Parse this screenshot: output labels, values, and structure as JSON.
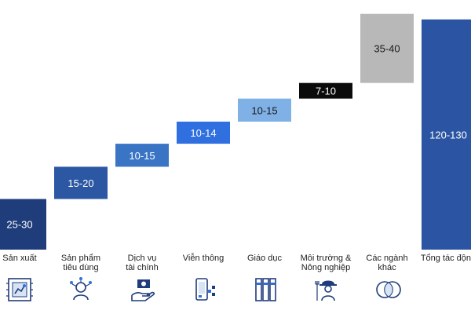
{
  "caption": "",
  "colors": {
    "navy": "#1f3c7b",
    "mid_blue": "#2b57a3",
    "blue": "#3a74c4",
    "bright_blue": "#2f6fe0",
    "light_blue": "#7fb0e6",
    "black": "#0b0b0b",
    "grey": "#b8b8b8",
    "total_blue": "#2b55a2"
  },
  "chart_data": {
    "type": "waterfall",
    "title": "",
    "xlabel": "",
    "ylabel": "",
    "categories": [
      "Sản xuất",
      "Sản phẩm tiêu dùng",
      "Dịch vụ tài chính",
      "Viễn thông",
      "Giáo dục",
      "Môi trường & Nông nghiệp",
      "Các ngành khác",
      "Tổng tác động"
    ],
    "category_lines": [
      [
        "Sản xuất"
      ],
      [
        "Sản phẩm",
        "tiêu dùng"
      ],
      [
        "Dịch vụ",
        "tài chính"
      ],
      [
        "Viễn thông"
      ],
      [
        "Giáo dục"
      ],
      [
        "Môi trường &",
        "Nông nghiệp"
      ],
      [
        "Các ngành",
        "khác"
      ],
      [
        "Tổng tác động"
      ]
    ],
    "labels": [
      "25-30",
      "15-20",
      "10-15",
      "10-14",
      "10-15",
      "7-10",
      "35-40",
      "120-130"
    ],
    "values": [
      27.5,
      17.5,
      12.5,
      12,
      12.5,
      8.5,
      37.5,
      125
    ],
    "bar_colors": [
      "#1f3c7b",
      "#2b57a3",
      "#3a74c4",
      "#2f6fe0",
      "#7fb0e6",
      "#0b0b0b",
      "#b8b8b8",
      "#2b55a2"
    ],
    "label_colors": [
      "#ffffff",
      "#ffffff",
      "#ffffff",
      "#ffffff",
      "#1a1a1a",
      "#ffffff",
      "#1a1a1a",
      "#ffffff"
    ],
    "ylim": [
      0,
      130
    ],
    "grid": false,
    "legend": "none"
  },
  "icons": [
    "factory-robot-icon",
    "person-network-icon",
    "hand-money-icon",
    "phone-signal-icon",
    "book-binders-icon",
    "farmer-icon",
    "overlap-circles-icon",
    ""
  ]
}
